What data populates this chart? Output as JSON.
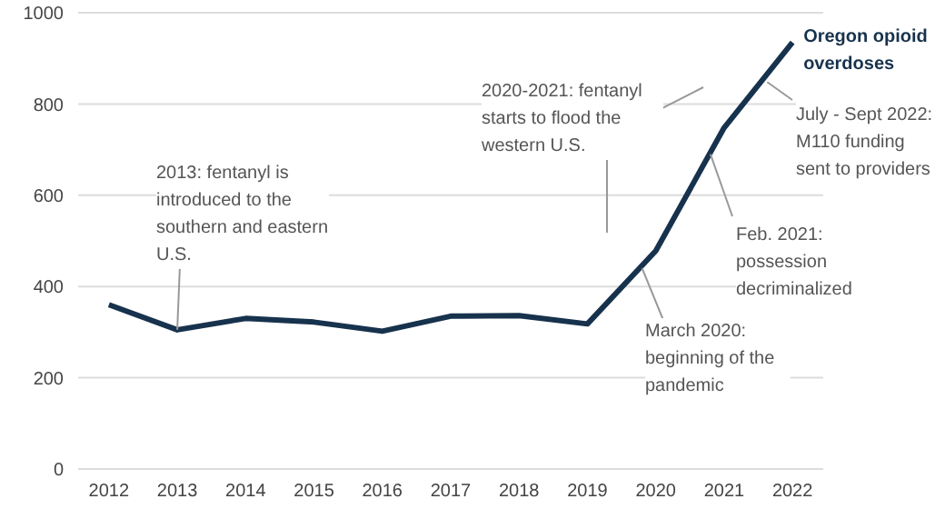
{
  "chart_data": {
    "type": "line",
    "x": [
      2012,
      2013,
      2014,
      2015,
      2016,
      2017,
      2018,
      2019,
      2020,
      2021,
      2022
    ],
    "series": [
      {
        "name": "Oregon opioid overdoses",
        "color": "#17324d",
        "values": [
          360,
          305,
          330,
          322,
          302,
          335,
          336,
          318,
          478,
          748,
          935
        ]
      }
    ],
    "xlim": [
      2011.55,
      2022.45
    ],
    "xticks": [
      2012,
      2013,
      2014,
      2015,
      2016,
      2017,
      2018,
      2019,
      2020,
      2021,
      2022
    ],
    "ylim": [
      0,
      1000
    ],
    "yticks": [
      0,
      200,
      400,
      600,
      800,
      1000
    ],
    "grid": "y",
    "marker": "none",
    "line_style": "solid",
    "annotations": [
      {
        "text": "2013: fentanyl is introduced to the southern and eastern U.S.",
        "x": 2013,
        "y": 305
      },
      "2020-2021: fentanyl starts to flood the western U.S.",
      {
        "text": "March 2020: beginning of the pandemic",
        "x": 2019.8,
        "y": 440
      },
      {
        "text": "Feb. 2021: possession decriminalized",
        "x": 2020.8,
        "y": 690
      },
      {
        "text": "July - Sept 2022: M110 funding sent to providers",
        "x": 2021.63,
        "y": 848
      }
    ]
  }
}
